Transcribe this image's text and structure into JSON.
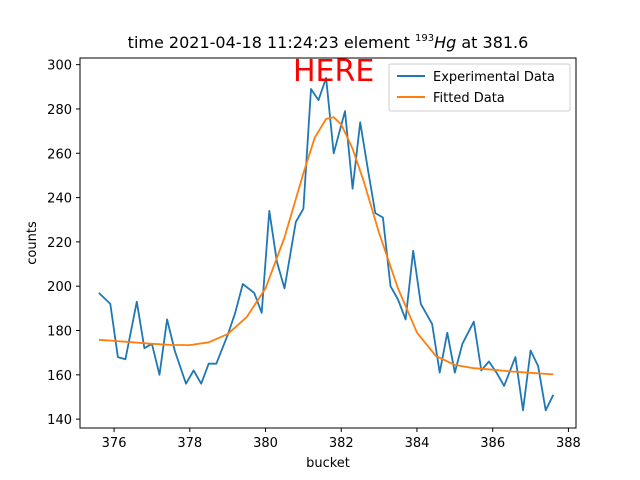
{
  "chart_data": {
    "type": "line",
    "title": {
      "prefix": "time 2021-04-18 11:24:23 element ",
      "superscript": "193",
      "element": "Hg",
      "suffix": " at 381.6"
    },
    "xlabel": "bucket",
    "ylabel": "counts",
    "xlim": [
      375.1,
      388.2
    ],
    "ylim": [
      136,
      303
    ],
    "xticks": [
      376,
      378,
      380,
      382,
      384,
      386,
      388
    ],
    "yticks": [
      140,
      160,
      180,
      200,
      220,
      240,
      260,
      280,
      300
    ],
    "legend_position": "upper-right",
    "annotation": {
      "text": "HERE",
      "x": 381.8,
      "y": 298,
      "color": "#ff0000"
    },
    "series": [
      {
        "name": "Experimental Data",
        "color": "#1f77b4",
        "x": [
          375.6,
          375.9,
          376.1,
          376.3,
          376.6,
          376.8,
          377.0,
          377.2,
          377.4,
          377.6,
          377.9,
          378.1,
          378.3,
          378.5,
          378.7,
          379.0,
          379.2,
          379.4,
          379.7,
          379.9,
          380.1,
          380.3,
          380.5,
          380.8,
          381.0,
          381.2,
          381.4,
          381.6,
          381.8,
          382.1,
          382.3,
          382.5,
          382.7,
          382.9,
          383.1,
          383.3,
          383.5,
          383.7,
          383.9,
          384.1,
          384.4,
          384.6,
          384.8,
          385.0,
          385.2,
          385.5,
          385.7,
          385.9,
          386.1,
          386.3,
          386.6,
          386.8,
          387.0,
          387.2,
          387.4,
          387.6
        ],
        "y": [
          197,
          192,
          168,
          167,
          193,
          172,
          174,
          160,
          185,
          171,
          156,
          162,
          156,
          165,
          165,
          178,
          188,
          201,
          197,
          188,
          234,
          211,
          199,
          229,
          235,
          289,
          284,
          294,
          260,
          279,
          244,
          274,
          253,
          233,
          231,
          200,
          194,
          185,
          216,
          192,
          183,
          161,
          179,
          161,
          174,
          184,
          162,
          166,
          161,
          155,
          168,
          144,
          171,
          164,
          144,
          151
        ]
      },
      {
        "name": "Fitted Data",
        "color": "#ff7f0e",
        "x": [
          375.6,
          376.0,
          376.5,
          377.0,
          377.5,
          378.0,
          378.5,
          379.0,
          379.5,
          380.0,
          380.5,
          381.0,
          381.3,
          381.6,
          381.8,
          382.0,
          382.3,
          382.6,
          383.0,
          383.5,
          384.0,
          384.5,
          385.0,
          385.5,
          386.0,
          386.5,
          387.0,
          387.6
        ],
        "y": [
          175.8,
          175.3,
          174.7,
          174.0,
          173.5,
          173.4,
          174.7,
          178.4,
          186.0,
          199.0,
          222.0,
          251.0,
          267.0,
          275.5,
          276.3,
          273.0,
          262.0,
          247.0,
          224.0,
          199.0,
          179.0,
          168.5,
          164.5,
          163.0,
          162.3,
          161.5,
          160.9,
          160.2
        ]
      }
    ]
  }
}
